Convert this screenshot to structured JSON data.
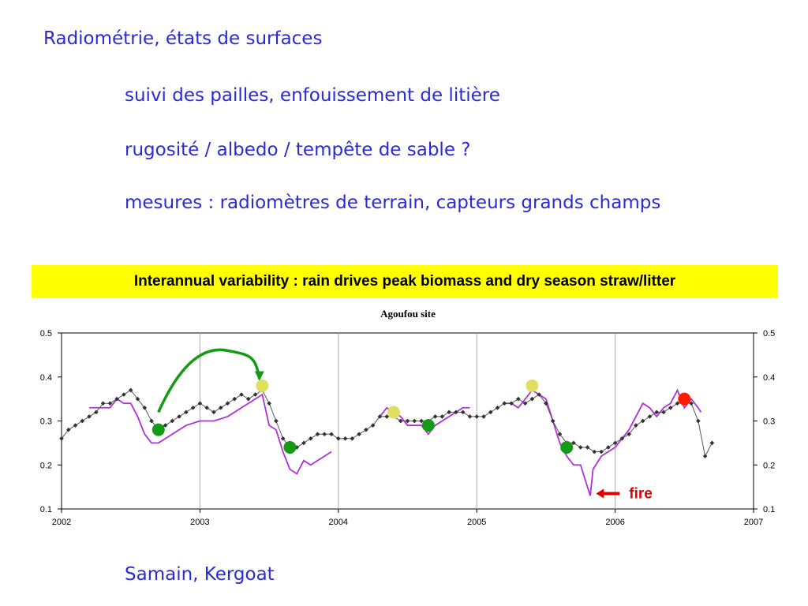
{
  "slide": {
    "heading": "Radiométrie, états de surfaces",
    "bullets": [
      "suivi des pailles, enfouissement de litière",
      "rugosité / albedo / tempête de sable ?",
      "mesures : radiomètres de terrain, capteurs grands champs"
    ],
    "banner": "Interannual variability : rain drives peak biomass and dry season straw/litter",
    "credits": "Samain, Kergoat"
  },
  "colors": {
    "text_blue": "#2a2ad6",
    "banner_bg": "#ffff00",
    "purple_line": "#b030d8",
    "black_line": "#555555",
    "marker_green": "#159a15",
    "marker_yellow": "#e0e060",
    "marker_red": "#ff1a00",
    "arrow_green": "#159a15",
    "arrow_red": "#e00000"
  },
  "chart_data": {
    "type": "line",
    "title": "Agoufou site",
    "xlabel": "",
    "ylabel": "",
    "xlim": [
      2002,
      2007
    ],
    "ylim": [
      0.1,
      0.5
    ],
    "x_ticks": [
      "2002",
      "2003",
      "2004",
      "2005",
      "2006",
      "2007"
    ],
    "y_ticks": [
      "0.1",
      "0.2",
      "0.3",
      "0.4",
      "0.5"
    ],
    "grid": "vertical at years",
    "series": [
      {
        "style": "solid purple line",
        "x": [
          2002.2,
          2002.3,
          2002.35,
          2002.4,
          2002.45,
          2002.5,
          2002.55,
          2002.6,
          2002.65,
          2002.7,
          2002.8,
          2002.9,
          2003.0,
          2003.1,
          2003.2,
          2003.3,
          2003.4,
          2003.45,
          2003.5,
          2003.55,
          2003.6,
          2003.65,
          2003.7,
          2003.75,
          2003.8,
          2003.85,
          2003.9,
          2003.95,
          2004.3,
          2004.35,
          2004.4,
          2004.45,
          2004.5,
          2004.55,
          2004.6,
          2004.65,
          2004.7,
          2004.75,
          2004.8,
          2004.85,
          2004.9,
          2004.95,
          2005.2,
          2005.25,
          2005.3,
          2005.35,
          2005.4,
          2005.45,
          2005.5,
          2005.55,
          2005.6,
          2005.65,
          2005.7,
          2005.75,
          2005.8,
          2005.82,
          2005.84,
          2005.86,
          2005.9,
          2005.95,
          2006.0,
          2006.05,
          2006.1,
          2006.15,
          2006.2,
          2006.25,
          2006.3,
          2006.35,
          2006.4,
          2006.45,
          2006.5,
          2006.55,
          2006.6,
          2006.62
        ],
        "y": [
          0.33,
          0.33,
          0.33,
          0.35,
          0.34,
          0.34,
          0.31,
          0.27,
          0.25,
          0.25,
          0.27,
          0.29,
          0.3,
          0.3,
          0.31,
          0.33,
          0.35,
          0.36,
          0.29,
          0.28,
          0.23,
          0.19,
          0.18,
          0.21,
          0.2,
          0.21,
          0.22,
          0.23,
          0.31,
          0.33,
          0.32,
          0.31,
          0.29,
          0.29,
          0.29,
          0.27,
          0.29,
          0.3,
          0.31,
          0.32,
          0.33,
          0.33,
          0.34,
          0.34,
          0.33,
          0.35,
          0.37,
          0.36,
          0.35,
          0.3,
          0.25,
          0.22,
          0.2,
          0.2,
          0.15,
          0.13,
          0.19,
          0.2,
          0.22,
          0.23,
          0.24,
          0.26,
          0.28,
          0.31,
          0.34,
          0.33,
          0.31,
          0.33,
          0.34,
          0.37,
          0.33,
          0.35,
          0.33,
          0.32
        ]
      },
      {
        "style": "black line with diamond markers",
        "x": [
          2002.0,
          2002.05,
          2002.1,
          2002.15,
          2002.2,
          2002.25,
          2002.3,
          2002.35,
          2002.4,
          2002.45,
          2002.5,
          2002.55,
          2002.6,
          2002.65,
          2002.7,
          2002.75,
          2002.8,
          2002.85,
          2002.9,
          2002.95,
          2003.0,
          2003.05,
          2003.1,
          2003.15,
          2003.2,
          2003.25,
          2003.3,
          2003.35,
          2003.4,
          2003.45,
          2003.5,
          2003.55,
          2003.6,
          2003.65,
          2003.7,
          2003.75,
          2003.8,
          2003.85,
          2003.9,
          2003.95,
          2004.0,
          2004.05,
          2004.1,
          2004.15,
          2004.2,
          2004.25,
          2004.3,
          2004.35,
          2004.4,
          2004.45,
          2004.5,
          2004.55,
          2004.6,
          2004.65,
          2004.7,
          2004.75,
          2004.8,
          2004.85,
          2004.9,
          2004.95,
          2005.0,
          2005.05,
          2005.1,
          2005.15,
          2005.2,
          2005.25,
          2005.3,
          2005.35,
          2005.4,
          2005.45,
          2005.5,
          2005.55,
          2005.6,
          2005.65,
          2005.7,
          2005.75,
          2005.8,
          2005.85,
          2005.9,
          2005.95,
          2006.0,
          2006.05,
          2006.1,
          2006.15,
          2006.2,
          2006.25,
          2006.3,
          2006.35,
          2006.4,
          2006.45,
          2006.5,
          2006.55,
          2006.6,
          2006.65,
          2006.7
        ],
        "y": [
          0.26,
          0.28,
          0.29,
          0.3,
          0.31,
          0.32,
          0.34,
          0.34,
          0.35,
          0.36,
          0.37,
          0.35,
          0.33,
          0.3,
          0.28,
          0.29,
          0.3,
          0.31,
          0.32,
          0.33,
          0.34,
          0.33,
          0.32,
          0.33,
          0.34,
          0.35,
          0.36,
          0.35,
          0.36,
          0.37,
          0.34,
          0.3,
          0.26,
          0.24,
          0.24,
          0.25,
          0.26,
          0.27,
          0.27,
          0.27,
          0.26,
          0.26,
          0.26,
          0.27,
          0.28,
          0.29,
          0.31,
          0.31,
          0.31,
          0.3,
          0.3,
          0.3,
          0.3,
          0.3,
          0.31,
          0.31,
          0.32,
          0.32,
          0.32,
          0.31,
          0.31,
          0.31,
          0.32,
          0.33,
          0.34,
          0.34,
          0.35,
          0.34,
          0.35,
          0.36,
          0.34,
          0.3,
          0.27,
          0.25,
          0.25,
          0.24,
          0.24,
          0.23,
          0.23,
          0.24,
          0.25,
          0.26,
          0.27,
          0.29,
          0.3,
          0.31,
          0.32,
          0.32,
          0.33,
          0.34,
          0.35,
          0.34,
          0.3,
          0.22,
          0.25
        ]
      }
    ],
    "markers": [
      {
        "color": "green",
        "x": 2002.7,
        "y": 0.28
      },
      {
        "color": "yellow",
        "x": 2003.45,
        "y": 0.38
      },
      {
        "color": "green",
        "x": 2003.65,
        "y": 0.24
      },
      {
        "color": "yellow",
        "x": 2004.4,
        "y": 0.32
      },
      {
        "color": "green",
        "x": 2004.65,
        "y": 0.29
      },
      {
        "color": "yellow",
        "x": 2005.4,
        "y": 0.38
      },
      {
        "color": "green",
        "x": 2005.65,
        "y": 0.24
      },
      {
        "color": "red",
        "x": 2006.5,
        "y": 0.35
      }
    ],
    "annotations": {
      "fire_label": "fire",
      "fire_x": 2005.85,
      "fire_y": 0.135
    }
  }
}
